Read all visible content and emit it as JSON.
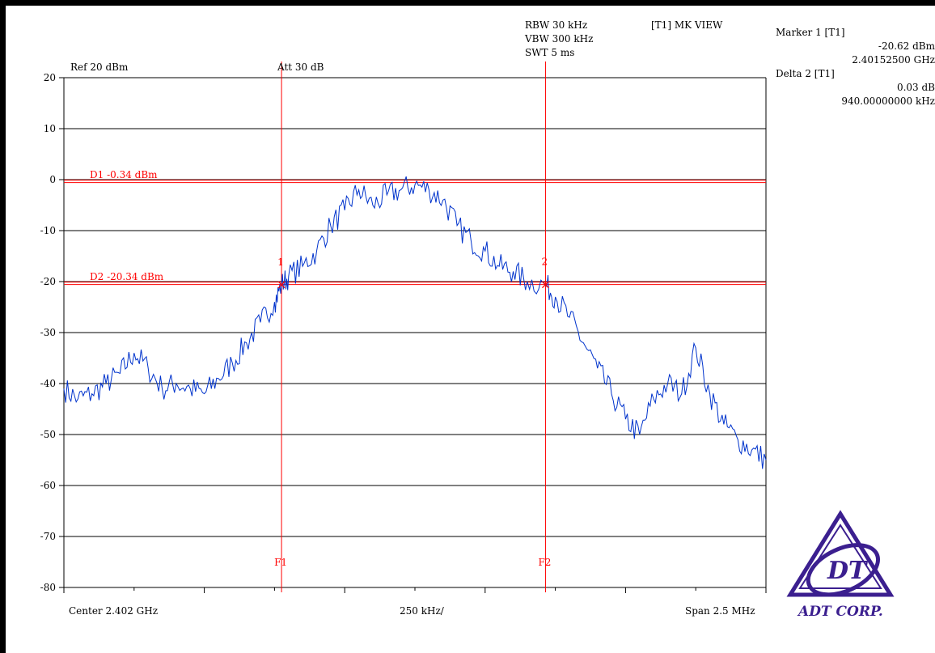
{
  "header": {
    "ref": "Ref 20 dBm",
    "att": "Att  30 dB",
    "rbw": "RBW 30 kHz",
    "vbw": "VBW 300 kHz",
    "swt": "SWT 5 ms",
    "view": "[T1] MK VIEW"
  },
  "marker_panel": {
    "marker_label": "Marker 1 [T1]",
    "marker_level": "-20.62 dBm",
    "marker_freq": "2.40152500 GHz",
    "delta_label": "Delta 2 [T1]",
    "delta_level": "0.03 dB",
    "delta_freq": "940.00000000 kHz"
  },
  "footer": {
    "center": "Center 2.402 GHz",
    "per_div": "250 kHz/",
    "span": "Span 2.5 MHz"
  },
  "logo": {
    "text": "ADT CORP.",
    "mark": "DT"
  },
  "colors": {
    "trace": "#0033cc",
    "markers": "#ff0000",
    "grid": "#000000",
    "logo": "#3b1f8f"
  },
  "chart_data": {
    "type": "line",
    "title": "",
    "xlabel": "",
    "ylabel": "",
    "xlim": [
      2.40075,
      2.40325
    ],
    "ylim": [
      -80,
      20
    ],
    "yticks": [
      20,
      10,
      0,
      -10,
      -20,
      -30,
      -40,
      -50,
      -60,
      -70,
      -80
    ],
    "ytick_labels": [
      "20",
      "10",
      "0",
      "-10",
      "-20",
      "-30",
      "-40",
      "-50",
      "-60",
      "-70",
      "-80"
    ],
    "grid": true,
    "reference_lines": [
      {
        "name": "D1",
        "label": "D1 -0.34 dBm",
        "y": -0.34
      },
      {
        "name": "D2",
        "label": "D2 -20.34 dBm",
        "y": -20.34
      }
    ],
    "frequency_lines": [
      {
        "name": "F1",
        "label": "F1",
        "x": 2.401525
      },
      {
        "name": "F2",
        "label": "F2",
        "x": 2.402465
      }
    ],
    "markers": [
      {
        "label": "1",
        "x": 2.401525,
        "y": -20.62
      },
      {
        "label": "2",
        "x": 2.402465,
        "y": -20.59
      }
    ],
    "series": [
      {
        "x": [
          2.40075,
          2.4008,
          2.40085,
          2.4009,
          2.40095,
          2.401,
          2.40105,
          2.4011,
          2.40115,
          2.4012,
          2.40125,
          2.4013,
          2.40135,
          2.4014,
          2.40145,
          2.4015,
          2.401525,
          2.40155,
          2.4016,
          2.40165,
          2.4017,
          2.40175,
          2.4018,
          2.40185,
          2.4019,
          2.40195,
          2.402,
          2.40205,
          2.4021,
          2.40215,
          2.4022,
          2.40225,
          2.4023,
          2.40235,
          2.4024,
          2.402465,
          2.4025,
          2.40255,
          2.4026,
          2.40265,
          2.4027,
          2.40275,
          2.4028,
          2.40285,
          2.4029,
          2.40295,
          2.403,
          2.40305,
          2.4031,
          2.40315,
          2.4032,
          2.40325
        ],
        "y": [
          -41,
          -43,
          -42,
          -40,
          -38,
          -34,
          -37,
          -41,
          -40,
          -41,
          -42,
          -39,
          -36,
          -32,
          -28,
          -24,
          -20.62,
          -19,
          -17,
          -14,
          -9,
          -6,
          -2,
          -5,
          -3,
          -2,
          -1,
          -2,
          -4,
          -9,
          -12,
          -14,
          -17,
          -18,
          -20,
          -20.59,
          -23,
          -27,
          -32,
          -37,
          -42,
          -47,
          -50,
          -43,
          -40,
          -42,
          -33,
          -42,
          -48,
          -51,
          -53,
          -55
        ]
      }
    ]
  }
}
